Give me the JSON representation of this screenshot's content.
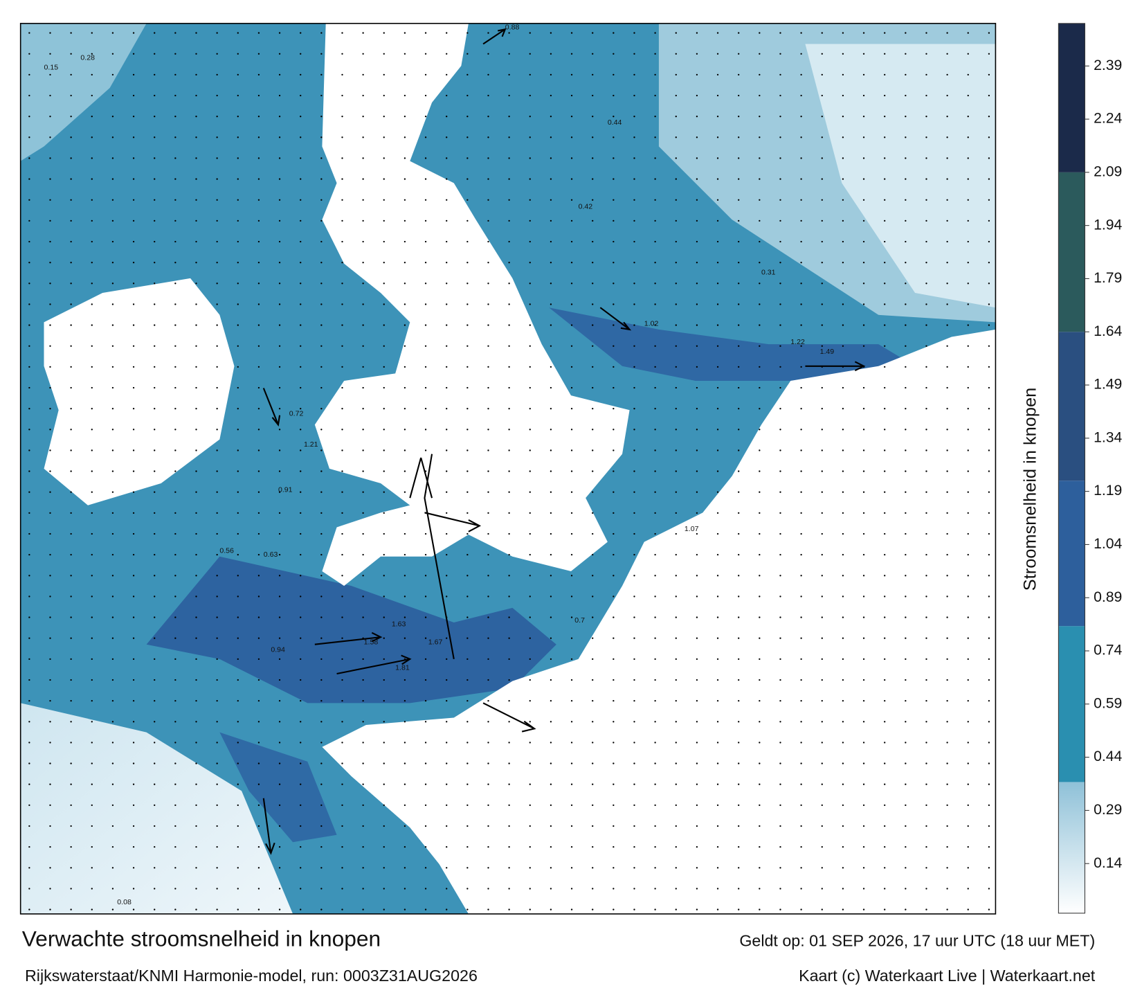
{
  "header": {
    "title": "Verwachte stroomsnelheid in knopen",
    "subtitle": "Rijkswaterstaat/KNMI Harmonie-model, run: 0003Z31AUG2026",
    "valid_time": "Geldt op: 01 SEP 2026, 17 uur UTC (18 uur MET)",
    "credit": "Kaart (c) Waterkaart Live | Waterkaart.net"
  },
  "colorbar": {
    "label": "Stroomsnelheid in knopen",
    "lim": [
      0,
      2.51
    ],
    "ticks": [
      0.14,
      0.29,
      0.44,
      0.59,
      0.74,
      0.89,
      1.04,
      1.19,
      1.34,
      1.49,
      1.64,
      1.79,
      1.94,
      2.09,
      2.24,
      2.39
    ],
    "bands": [
      {
        "from": 0,
        "to": 0.37,
        "color": "#a9cfe0"
      },
      {
        "from": 0.37,
        "to": 0.81,
        "color": "#2a8fb0"
      },
      {
        "from": 0.81,
        "to": 1.22,
        "color": "#2d5f9c"
      },
      {
        "from": 1.22,
        "to": 1.64,
        "color": "#2a4f80"
      },
      {
        "from": 1.64,
        "to": 2.09,
        "color": "#2b5a5c"
      },
      {
        "from": 2.09,
        "to": 2.51,
        "color": "#1b2a4a"
      }
    ]
  },
  "speed_labels": [
    1.67,
    1.63,
    1.58,
    1.81,
    1.49,
    1.22,
    1.21,
    1.07,
    0.88,
    0.91,
    0.72,
    0.56,
    0.44,
    0.31,
    0.15,
    0.28,
    0.63,
    0.7,
    0.08,
    0.42,
    0.94,
    1.02
  ]
}
